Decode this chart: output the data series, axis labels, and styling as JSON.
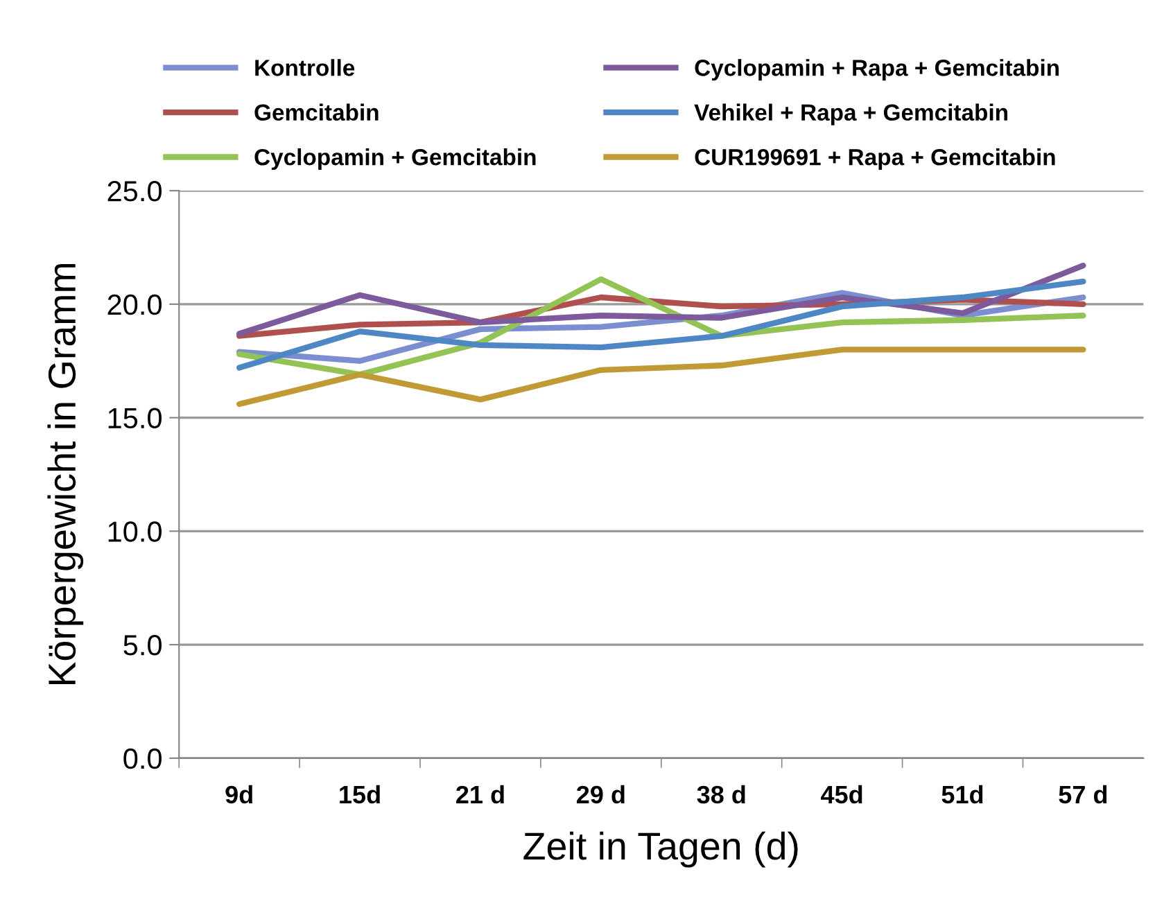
{
  "chart_data": {
    "type": "line",
    "xlabel": "Zeit in Tagen (d)",
    "ylabel": "Körpergewicht in Gramm",
    "categories": [
      "9d",
      "15d",
      "21 d",
      "29 d",
      "38 d",
      "45d",
      "51d",
      "57 d"
    ],
    "series": [
      {
        "name": "Kontrolle",
        "color": "#7b8fd0",
        "values": [
          17.9,
          17.5,
          18.9,
          19.0,
          19.5,
          20.5,
          19.5,
          20.3
        ]
      },
      {
        "name": "Gemcitabin",
        "color": "#b0504e",
        "values": [
          18.6,
          19.1,
          19.2,
          20.3,
          19.9,
          20.0,
          20.2,
          20.0
        ]
      },
      {
        "name": "Cyclopamin + Gemcitabin",
        "color": "#93c255",
        "values": [
          17.8,
          16.9,
          18.3,
          21.1,
          18.6,
          19.2,
          19.3,
          19.5
        ]
      },
      {
        "name": "Cyclopamin + Rapa + Gemcitabin",
        "color": "#7d5a9c",
        "values": [
          18.7,
          20.4,
          19.2,
          19.5,
          19.4,
          20.3,
          19.6,
          21.7
        ]
      },
      {
        "name": "Vehikel + Rapa + Gemcitabin",
        "color": "#4f87c5",
        "values": [
          17.2,
          18.8,
          18.2,
          18.1,
          18.6,
          19.9,
          20.3,
          21.0
        ]
      },
      {
        "name": "CUR199691 + Rapa + Gemcitabin",
        "color": "#c09a35",
        "values": [
          15.6,
          16.9,
          15.8,
          17.1,
          17.3,
          18.0,
          18.0,
          18.0
        ]
      }
    ],
    "ylim": [
      0,
      25
    ],
    "yticks": [
      {
        "value": 0,
        "label": "0.0"
      },
      {
        "value": 5,
        "label": "5.0"
      },
      {
        "value": 10,
        "label": "10.0"
      },
      {
        "value": 15,
        "label": "15.0"
      },
      {
        "value": 20,
        "label": "20.0"
      },
      {
        "value": 25,
        "label": "25.0"
      }
    ],
    "grid": "y",
    "legend": "top",
    "marker": "none",
    "line_style": "solid"
  }
}
